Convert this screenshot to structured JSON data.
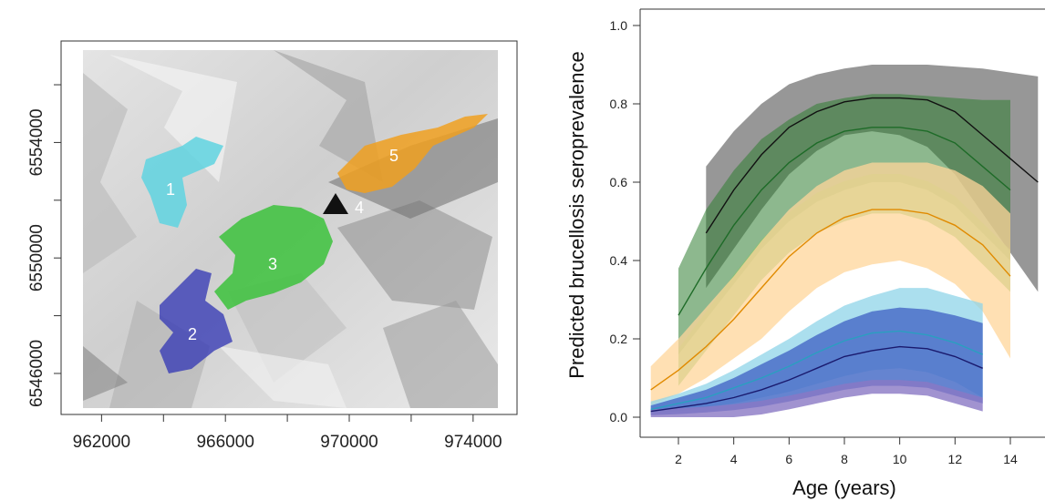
{
  "colors": {
    "cyan": "#5fd3e0",
    "blue": "#3a3db5",
    "green": "#3cc23c",
    "orange": "#f0a020",
    "black": "#111111",
    "gray_band": "#8c8c8c",
    "dark_green_band": "#2f7d32",
    "light_green_band": "#7fc36a",
    "orange_band": "#ffd699",
    "lightblue_band": "#8fd4e8",
    "blue_band": "#4a6fc8",
    "purple_band": "#8a78c4"
  },
  "chart_data": [
    {
      "type": "map",
      "x_ticks": [
        "962000",
        "966000",
        "970000",
        "974000"
      ],
      "y_ticks": [
        "6546000",
        "6550000",
        "6554000"
      ],
      "xlim": [
        961400,
        974800
      ],
      "ylim": [
        6544800,
        6557200
      ],
      "zones": [
        {
          "label": "1",
          "color": "cyan",
          "x": 964600,
          "y": 6552800
        },
        {
          "label": "2",
          "color": "blue",
          "x": 965100,
          "y": 6547000
        },
        {
          "label": "3",
          "color": "green",
          "x": 967500,
          "y": 6549900
        },
        {
          "label": "4",
          "color": "none",
          "x": 970200,
          "y": 6551400
        },
        {
          "label": "5",
          "color": "orange",
          "x": 971400,
          "y": 6553700
        }
      ],
      "peak_marker": {
        "x": 969700,
        "y": 6551500,
        "shape": "triangle"
      }
    },
    {
      "type": "line",
      "title": "",
      "xlabel": "Age (years)",
      "ylabel": "Predicted brucellosis seroprevalence",
      "xlim": [
        1,
        15
      ],
      "ylim": [
        0,
        1.0
      ],
      "x_ticks": [
        "2",
        "4",
        "6",
        "8",
        "10",
        "12",
        "14"
      ],
      "y_ticks": [
        "0.0",
        "0.2",
        "0.4",
        "0.6",
        "0.8",
        "1.0"
      ],
      "series": [
        {
          "color": "black",
          "band_color": "gray_band",
          "x": [
            3,
            4,
            5,
            6,
            7,
            8,
            9,
            10,
            11,
            12,
            13,
            14,
            15
          ],
          "y": [
            0.47,
            0.58,
            0.67,
            0.74,
            0.78,
            0.805,
            0.815,
            0.815,
            0.81,
            0.78,
            0.72,
            0.66,
            0.6
          ],
          "lower": [
            0.33,
            0.43,
            0.53,
            0.62,
            0.68,
            0.72,
            0.73,
            0.72,
            0.69,
            0.62,
            0.52,
            0.42,
            0.32
          ],
          "upper": [
            0.64,
            0.73,
            0.8,
            0.85,
            0.875,
            0.89,
            0.9,
            0.9,
            0.9,
            0.895,
            0.89,
            0.88,
            0.87
          ]
        },
        {
          "color": "#1e6b28",
          "band_color": "dark_green_band",
          "x": [
            2,
            3,
            4,
            5,
            6,
            7,
            8,
            9,
            10,
            11,
            12,
            13,
            14
          ],
          "y": [
            0.26,
            0.38,
            0.49,
            0.58,
            0.65,
            0.7,
            0.73,
            0.74,
            0.74,
            0.73,
            0.7,
            0.64,
            0.58
          ],
          "lower": [
            0.16,
            0.25,
            0.34,
            0.43,
            0.5,
            0.55,
            0.58,
            0.6,
            0.6,
            0.58,
            0.54,
            0.47,
            0.4
          ],
          "upper": [
            0.38,
            0.53,
            0.63,
            0.71,
            0.76,
            0.8,
            0.815,
            0.825,
            0.825,
            0.82,
            0.815,
            0.81,
            0.81
          ]
        },
        {
          "color": "#e08a00",
          "band_color": "orange_band",
          "x": [
            1,
            2,
            3,
            4,
            5,
            6,
            7,
            8,
            9,
            10,
            11,
            12,
            13,
            14
          ],
          "y": [
            0.07,
            0.12,
            0.18,
            0.25,
            0.33,
            0.41,
            0.47,
            0.51,
            0.53,
            0.53,
            0.52,
            0.49,
            0.44,
            0.36
          ],
          "lower": [
            0.03,
            0.06,
            0.1,
            0.15,
            0.2,
            0.27,
            0.33,
            0.37,
            0.39,
            0.4,
            0.38,
            0.34,
            0.27,
            0.15
          ],
          "upper": [
            0.13,
            0.2,
            0.28,
            0.36,
            0.45,
            0.53,
            0.59,
            0.63,
            0.65,
            0.65,
            0.65,
            0.63,
            0.59,
            0.52
          ]
        },
        {
          "color": "#2a9fc0",
          "band_color": "lightblue_band",
          "x": [
            1,
            2,
            3,
            4,
            5,
            6,
            7,
            8,
            9,
            10,
            11,
            12,
            13
          ],
          "y": [
            0.02,
            0.035,
            0.05,
            0.075,
            0.1,
            0.13,
            0.165,
            0.195,
            0.215,
            0.22,
            0.21,
            0.19,
            0.16
          ],
          "lower": [
            0.01,
            0.015,
            0.025,
            0.035,
            0.05,
            0.065,
            0.085,
            0.105,
            0.12,
            0.125,
            0.115,
            0.09,
            0.05
          ],
          "upper": [
            0.04,
            0.06,
            0.085,
            0.12,
            0.16,
            0.2,
            0.245,
            0.285,
            0.31,
            0.33,
            0.33,
            0.31,
            0.29
          ]
        },
        {
          "color": "#1a1a6e",
          "band_color": "blue_band",
          "x": [
            1,
            2,
            3,
            4,
            5,
            6,
            7,
            8,
            9,
            10,
            11,
            12,
            13
          ],
          "y": [
            0.015,
            0.025,
            0.035,
            0.05,
            0.07,
            0.095,
            0.125,
            0.155,
            0.17,
            0.18,
            0.175,
            0.155,
            0.125
          ],
          "lower": [
            0.005,
            0.008,
            0.012,
            0.018,
            0.027,
            0.04,
            0.055,
            0.07,
            0.08,
            0.08,
            0.075,
            0.055,
            0.035
          ],
          "upper": [
            0.03,
            0.05,
            0.07,
            0.1,
            0.135,
            0.17,
            0.21,
            0.245,
            0.27,
            0.28,
            0.275,
            0.26,
            0.24
          ]
        }
      ]
    }
  ]
}
